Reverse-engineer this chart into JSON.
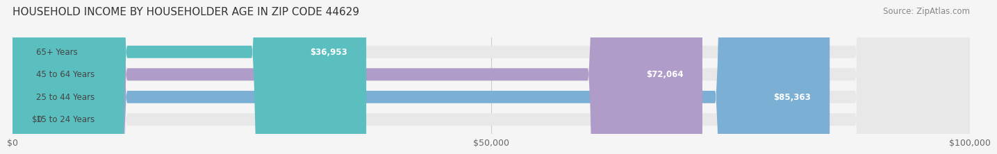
{
  "title": "HOUSEHOLD INCOME BY HOUSEHOLDER AGE IN ZIP CODE 44629",
  "source_text": "Source: ZipAtlas.com",
  "categories": [
    "15 to 24 Years",
    "25 to 44 Years",
    "45 to 64 Years",
    "65+ Years"
  ],
  "values": [
    0,
    85363,
    72064,
    36953
  ],
  "bar_colors": [
    "#f0a0a0",
    "#7bafd4",
    "#b09cc8",
    "#5bbfbf"
  ],
  "bar_labels": [
    "$0",
    "$85,363",
    "$72,064",
    "$36,953"
  ],
  "xlim": [
    0,
    100000
  ],
  "xticks": [
    0,
    50000,
    100000
  ],
  "xtick_labels": [
    "$0",
    "$50,000",
    "$100,000"
  ],
  "background_color": "#f5f5f5",
  "bar_bg_color": "#e8e8e8",
  "title_fontsize": 11,
  "source_fontsize": 8.5,
  "label_fontsize": 8.5,
  "tick_fontsize": 9,
  "bar_height": 0.55,
  "fig_width": 14.06,
  "fig_height": 2.33
}
